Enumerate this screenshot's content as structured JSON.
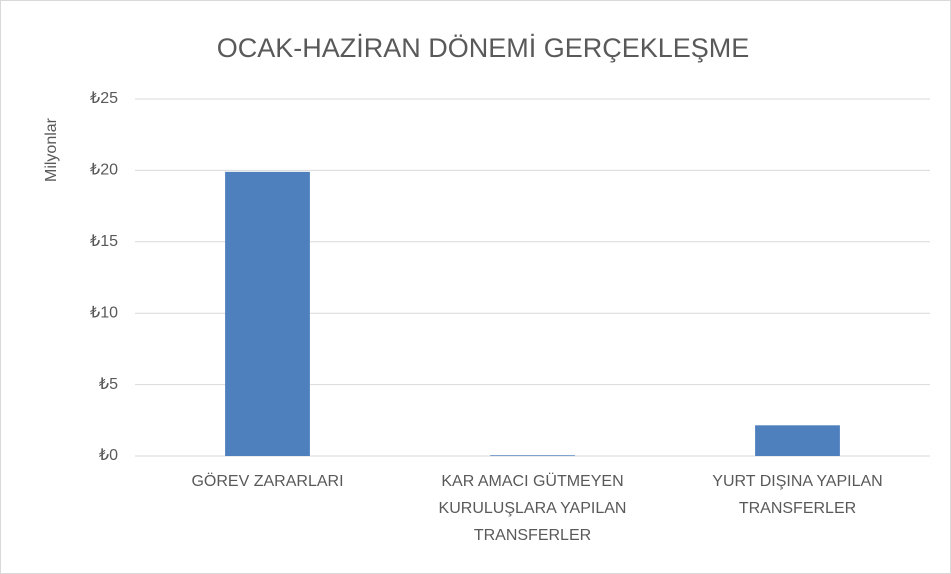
{
  "chart_data": {
    "type": "bar",
    "title": "OCAK-HAZİRAN DÖNEMİ GERÇEKLEŞME",
    "y_axis_label": "Milyonlar",
    "categories": [
      "GÖREV ZARARLARI",
      "KAR AMACI GÜTMEYEN KURULUŞLARA YAPILAN TRANSFERLER",
      "YURT DIŞINA YAPILAN TRANSFERLER"
    ],
    "values": [
      19.9,
      0.05,
      2.15
    ],
    "color": "#4e80bd",
    "ylim": [
      0,
      25
    ],
    "yticks": [
      {
        "value": 0,
        "label": "₺0"
      },
      {
        "value": 5,
        "label": "₺5"
      },
      {
        "value": 10,
        "label": "₺10"
      },
      {
        "value": 15,
        "label": "₺15"
      },
      {
        "value": 20,
        "label": "₺20"
      },
      {
        "value": 25,
        "label": "₺25"
      }
    ],
    "grid": true
  }
}
